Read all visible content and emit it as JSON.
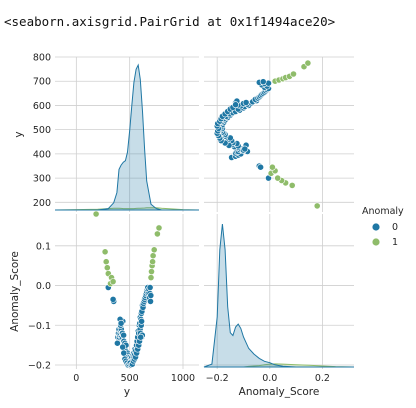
{
  "repr_text": "<seaborn.axisgrid.PairGrid at 0x1f1494ace20>",
  "chart_data": {
    "type": "scatter",
    "kind": "pairgrid",
    "variables": [
      "y",
      "Anomaly_Score"
    ],
    "hue": "Anomaly",
    "legend": {
      "title": "Anomaly",
      "placement": "right",
      "items": [
        {
          "label": "0",
          "color": "#1f77a4"
        },
        {
          "label": "1",
          "color": "#8fbc6a"
        }
      ]
    },
    "colors": {
      "0": "#1f77a4",
      "1": "#8fbc6a",
      "grid": "#cfcfcf",
      "panel_bg": "#ffffff"
    },
    "grid": true,
    "axes": {
      "y": {
        "label": "y",
        "scatter_range": [
          160,
          800
        ],
        "ticks": [
          200,
          300,
          400,
          500,
          600,
          700,
          800
        ],
        "kde_range": [
          -200,
          1150
        ],
        "kde_ticks": [
          0,
          500,
          1000
        ]
      },
      "Anomaly_Score": {
        "label": "Anomaly_Score",
        "range": [
          -0.21,
          0.18
        ],
        "ticks": [
          -0.2,
          -0.1,
          0.0,
          0.1
        ],
        "kde_range": [
          -0.25,
          0.32
        ],
        "kde_ticks": [
          -0.2,
          0.0,
          0.2
        ]
      }
    },
    "tick_labels": {
      "y_axis": [
        "200",
        "300",
        "400",
        "500",
        "600",
        "700",
        "800"
      ],
      "score_axis": [
        "−0.2",
        "−0.1",
        "0.0",
        "0.1"
      ],
      "y_kde_axis": [
        "0",
        "500",
        "1000"
      ],
      "score_kde_axis": [
        "−0.2",
        "0.0",
        "0.2"
      ]
    },
    "series": [
      {
        "name": "0",
        "points": [
          [
            385,
            -0.145
          ],
          [
            390,
            -0.13
          ],
          [
            395,
            -0.12
          ],
          [
            400,
            -0.11
          ],
          [
            403,
            -0.13
          ],
          [
            408,
            -0.125
          ],
          [
            410,
            -0.12
          ],
          [
            415,
            -0.105
          ],
          [
            418,
            -0.115
          ],
          [
            420,
            -0.1
          ],
          [
            422,
            -0.11
          ],
          [
            425,
            -0.13
          ],
          [
            428,
            -0.12
          ],
          [
            430,
            -0.135
          ],
          [
            433,
            -0.12
          ],
          [
            436,
            -0.09
          ],
          [
            440,
            -0.14
          ],
          [
            443,
            -0.125
          ],
          [
            446,
            -0.14
          ],
          [
            450,
            -0.16
          ],
          [
            452,
            -0.15
          ],
          [
            455,
            -0.145
          ],
          [
            458,
            -0.16
          ],
          [
            460,
            -0.17
          ],
          [
            463,
            -0.165
          ],
          [
            466,
            -0.15
          ],
          [
            470,
            -0.175
          ],
          [
            473,
            -0.17
          ],
          [
            476,
            -0.18
          ],
          [
            480,
            -0.17
          ],
          [
            483,
            -0.19
          ],
          [
            486,
            -0.175
          ],
          [
            490,
            -0.18
          ],
          [
            493,
            -0.195
          ],
          [
            496,
            -0.185
          ],
          [
            500,
            -0.19
          ],
          [
            505,
            -0.18
          ],
          [
            510,
            -0.185
          ],
          [
            515,
            -0.19
          ],
          [
            520,
            -0.18
          ],
          [
            525,
            -0.19
          ],
          [
            530,
            -0.175
          ],
          [
            535,
            -0.18
          ],
          [
            540,
            -0.17
          ],
          [
            545,
            -0.175
          ],
          [
            550,
            -0.16
          ],
          [
            555,
            -0.165
          ],
          [
            560,
            -0.15
          ],
          [
            565,
            -0.15
          ],
          [
            570,
            -0.14
          ],
          [
            575,
            -0.13
          ],
          [
            580,
            -0.115
          ],
          [
            585,
            -0.12
          ],
          [
            590,
            -0.1
          ],
          [
            595,
            -0.095
          ],
          [
            600,
            -0.08
          ],
          [
            605,
            -0.085
          ],
          [
            610,
            -0.07
          ],
          [
            615,
            -0.065
          ],
          [
            620,
            -0.05
          ],
          [
            625,
            -0.055
          ],
          [
            630,
            -0.045
          ],
          [
            635,
            -0.04
          ],
          [
            640,
            -0.035
          ],
          [
            645,
            -0.03
          ],
          [
            650,
            -0.025
          ],
          [
            655,
            -0.02
          ],
          [
            660,
            -0.015
          ],
          [
            665,
            -0.01
          ],
          [
            670,
            -0.005
          ],
          [
            675,
            -0.02
          ],
          [
            680,
            -0.01
          ],
          [
            685,
            -0.03
          ],
          [
            690,
            -0.02
          ],
          [
            692,
            -0.005
          ],
          [
            695,
            -0.04
          ],
          [
            698,
            -0.025
          ],
          [
            300,
            -0.005
          ],
          [
            350,
            -0.04
          ],
          [
            345,
            -0.035
          ],
          [
            410,
            -0.085
          ],
          [
            415,
            -0.1
          ],
          [
            420,
            -0.095
          ],
          [
            598,
            -0.11
          ],
          [
            602,
            -0.12
          ],
          [
            612,
            -0.13
          ],
          [
            618,
            -0.125
          ],
          [
            435,
            -0.155
          ],
          [
            445,
            -0.17
          ],
          [
            455,
            -0.185
          ],
          [
            465,
            -0.19
          ],
          [
            475,
            -0.195
          ],
          [
            485,
            -0.2
          ],
          [
            495,
            -0.198
          ],
          [
            505,
            -0.195
          ],
          [
            515,
            -0.2
          ],
          [
            525,
            -0.198
          ],
          [
            535,
            -0.19
          ],
          [
            545,
            -0.185
          ],
          [
            555,
            -0.18
          ],
          [
            565,
            -0.17
          ],
          [
            575,
            -0.16
          ],
          [
            585,
            -0.15
          ],
          [
            592,
            -0.14
          ],
          [
            603,
            -0.13
          ],
          [
            608,
            -0.1
          ],
          [
            612,
            -0.09
          ]
        ]
      },
      {
        "name": "1",
        "points": [
          [
            185,
            0.18
          ],
          [
            270,
            0.085
          ],
          [
            280,
            0.06
          ],
          [
            290,
            0.045
          ],
          [
            300,
            0.03
          ],
          [
            320,
            0.005
          ],
          [
            330,
            0.02
          ],
          [
            345,
            0.01
          ],
          [
            700,
            0.02
          ],
          [
            705,
            0.035
          ],
          [
            710,
            0.05
          ],
          [
            715,
            0.06
          ],
          [
            720,
            0.075
          ],
          [
            730,
            0.09
          ],
          [
            760,
            0.13
          ],
          [
            775,
            0.145
          ]
        ]
      }
    ],
    "kde_y": {
      "x": [
        -200,
        200,
        300,
        350,
        380,
        400,
        420,
        440,
        460,
        480,
        500,
        520,
        540,
        560,
        580,
        600,
        620,
        640,
        660,
        700,
        750,
        800,
        1000,
        1150
      ],
      "class_0": [
        0,
        0,
        0.01,
        0.05,
        0.12,
        0.28,
        0.31,
        0.33,
        0.34,
        0.4,
        0.55,
        0.72,
        0.88,
        0.97,
        1.0,
        0.9,
        0.68,
        0.42,
        0.2,
        0.04,
        0.01,
        0,
        0,
        0
      ],
      "class_1": [
        0,
        0.005,
        0.01,
        0.012,
        0.012,
        0.012,
        0.011,
        0.01,
        0.01,
        0.01,
        0.01,
        0.01,
        0.01,
        0.011,
        0.012,
        0.012,
        0.013,
        0.014,
        0.015,
        0.016,
        0.015,
        0.012,
        0.003,
        0
      ]
    },
    "kde_score": {
      "x": [
        -0.25,
        -0.22,
        -0.2,
        -0.19,
        -0.18,
        -0.17,
        -0.16,
        -0.15,
        -0.14,
        -0.13,
        -0.12,
        -0.11,
        -0.1,
        -0.08,
        -0.06,
        -0.04,
        -0.02,
        0.0,
        0.02,
        0.05,
        0.1,
        0.15,
        0.2,
        0.25,
        0.32
      ],
      "class_0": [
        0,
        0.02,
        0.35,
        0.82,
        1.0,
        0.82,
        0.42,
        0.24,
        0.22,
        0.28,
        0.3,
        0.27,
        0.21,
        0.13,
        0.09,
        0.06,
        0.04,
        0.03,
        0.015,
        0.005,
        0,
        0,
        0,
        0,
        0
      ],
      "class_1": [
        0,
        0,
        0,
        0,
        0,
        0,
        0,
        0,
        0,
        0,
        0,
        0,
        0,
        0.004,
        0.007,
        0.01,
        0.016,
        0.02,
        0.022,
        0.02,
        0.016,
        0.012,
        0.007,
        0.003,
        0
      ]
    }
  }
}
